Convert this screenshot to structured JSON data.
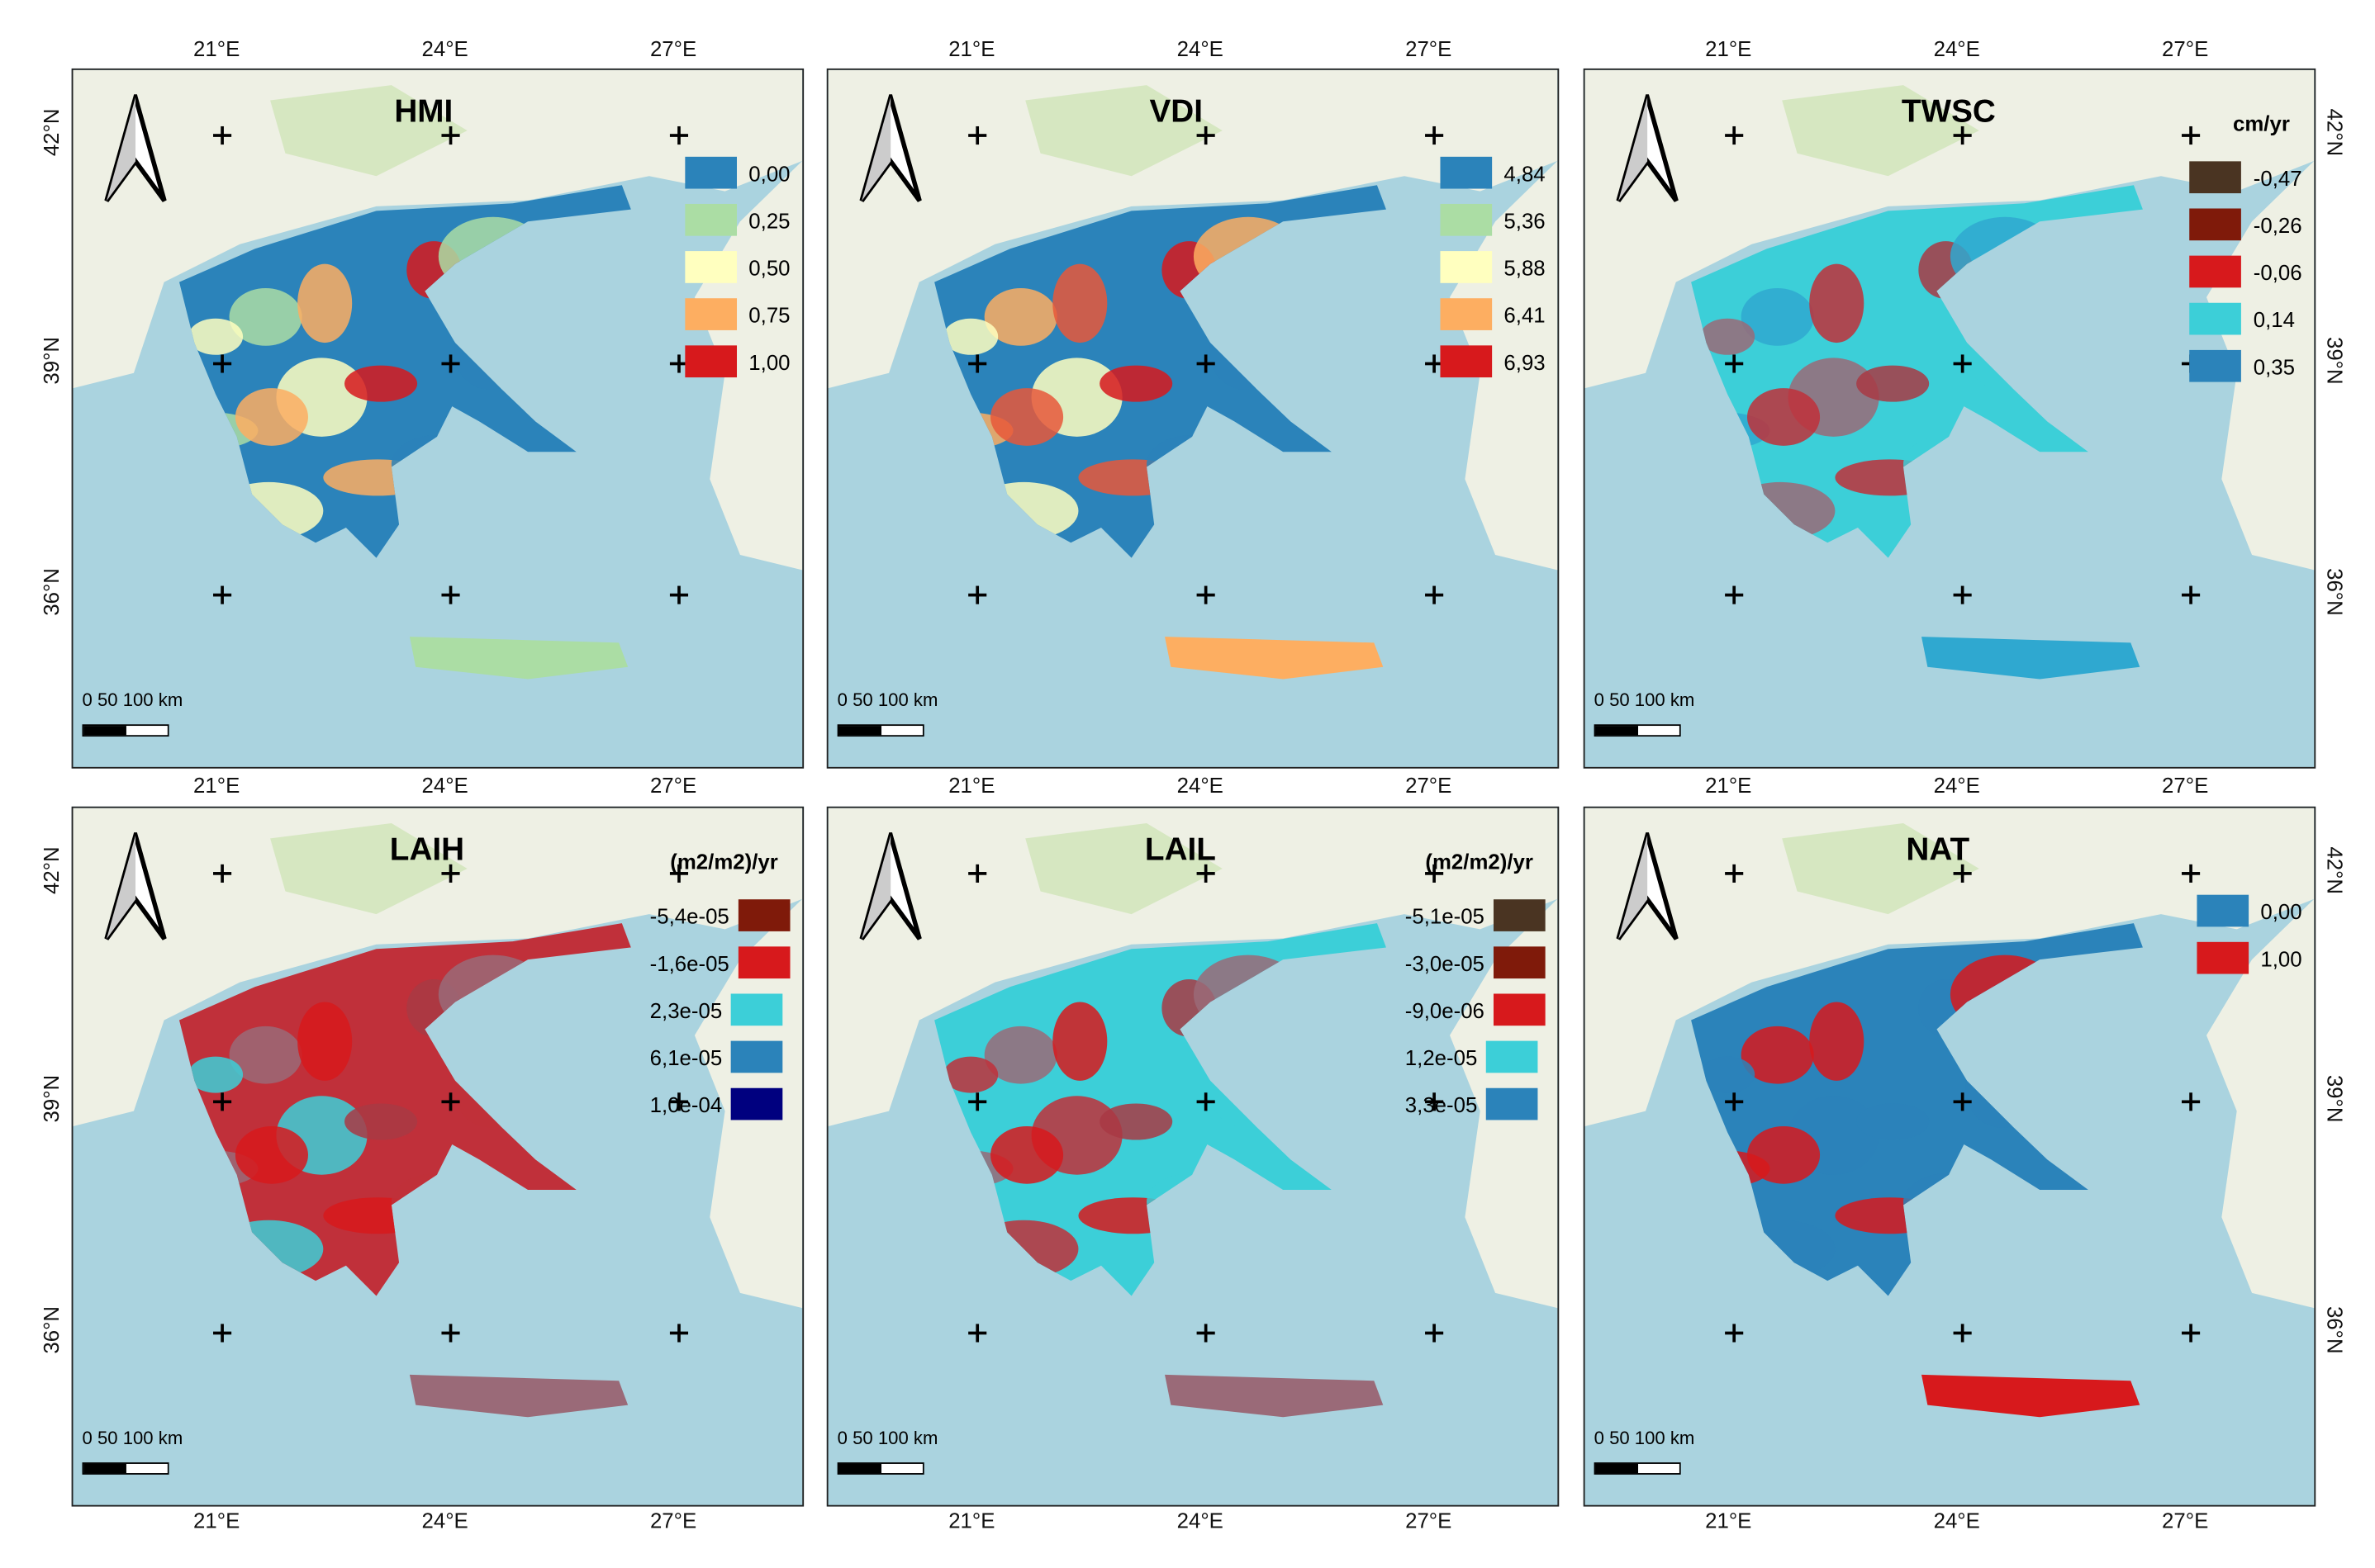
{
  "axes": {
    "lon_labels": [
      "21°E",
      "24°E",
      "27°E"
    ],
    "lat_labels": [
      "42°N",
      "39°N",
      "36°N"
    ]
  },
  "scale_bar": {
    "label": "0   50  100 km"
  },
  "panels": [
    {
      "title": "HMI",
      "unit": "",
      "legend_side": "left",
      "legend": [
        {
          "label": "0,00",
          "color": "#2b83ba"
        },
        {
          "label": "0,25",
          "color": "#abdda4"
        },
        {
          "label": "0,50",
          "color": "#ffffbf"
        },
        {
          "label": "0,75",
          "color": "#fdae61"
        },
        {
          "label": "1,00",
          "color": "#d7191c"
        }
      ],
      "map_colors": [
        "#2b83ba",
        "#abdda4",
        "#ffffbf",
        "#fdae61",
        "#d7191c"
      ]
    },
    {
      "title": "VDI",
      "unit": "",
      "legend_side": "left",
      "legend": [
        {
          "label": "4,84",
          "color": "#2b83ba"
        },
        {
          "label": "5,36",
          "color": "#abdda4"
        },
        {
          "label": "5,88",
          "color": "#ffffbf"
        },
        {
          "label": "6,41",
          "color": "#fdae61"
        },
        {
          "label": "6,93",
          "color": "#d7191c"
        }
      ],
      "map_colors": [
        "#2b83ba",
        "#fdae61",
        "#ffffbf",
        "#e8583a",
        "#d7191c"
      ]
    },
    {
      "title": "TWSC",
      "unit": "cm/yr",
      "legend_side": "left",
      "legend": [
        {
          "label": "-0,47",
          "color": "#4a3422"
        },
        {
          "label": "-0,26",
          "color": "#7f1a0a"
        },
        {
          "label": "-0,06",
          "color": "#d7191c"
        },
        {
          "label": "0,14",
          "color": "#3ccfd8"
        },
        {
          "label": "0,35",
          "color": "#2b83ba"
        }
      ],
      "map_colors": [
        "#3ccfd8",
        "#2fa8d0",
        "#9a6a78",
        "#c0303a",
        "#a83a44"
      ]
    },
    {
      "title": "LAIH",
      "unit": "(m2/m2)/yr",
      "legend_side": "right",
      "legend": [
        {
          "label": "-5,4e-05",
          "color": "#7f1a0a"
        },
        {
          "label": "-1,6e-05",
          "color": "#d7191c"
        },
        {
          "label": "2,3e-05",
          "color": "#3ccfd8"
        },
        {
          "label": "6,1e-05",
          "color": "#2b83ba"
        },
        {
          "label": "1,0e-04",
          "color": "#00007f"
        }
      ],
      "map_colors": [
        "#c0303a",
        "#9a6a78",
        "#3ccfd8",
        "#d7191c",
        "#a83a44"
      ]
    },
    {
      "title": "LAIL",
      "unit": "(m2/m2)/yr",
      "legend_side": "right",
      "legend": [
        {
          "label": "-5,1e-05",
          "color": "#4a3422"
        },
        {
          "label": "-3,0e-05",
          "color": "#7f1a0a"
        },
        {
          "label": "-9,0e-06",
          "color": "#d7191c"
        },
        {
          "label": "1,2e-05",
          "color": "#3ccfd8"
        },
        {
          "label": "3,3e-05",
          "color": "#2b83ba"
        }
      ],
      "map_colors": [
        "#3ccfd8",
        "#9a6a78",
        "#c0303a",
        "#d7191c",
        "#a83a44"
      ]
    },
    {
      "title": "NAT",
      "unit": "",
      "legend_side": "left",
      "legend": [
        {
          "label": "0,00",
          "color": "#2b83ba"
        },
        {
          "label": "1,00",
          "color": "#d7191c"
        }
      ],
      "map_colors": [
        "#2b83ba",
        "#d7191c",
        "#2b83ba",
        "#d7191c",
        "#2b83ba"
      ]
    }
  ]
}
